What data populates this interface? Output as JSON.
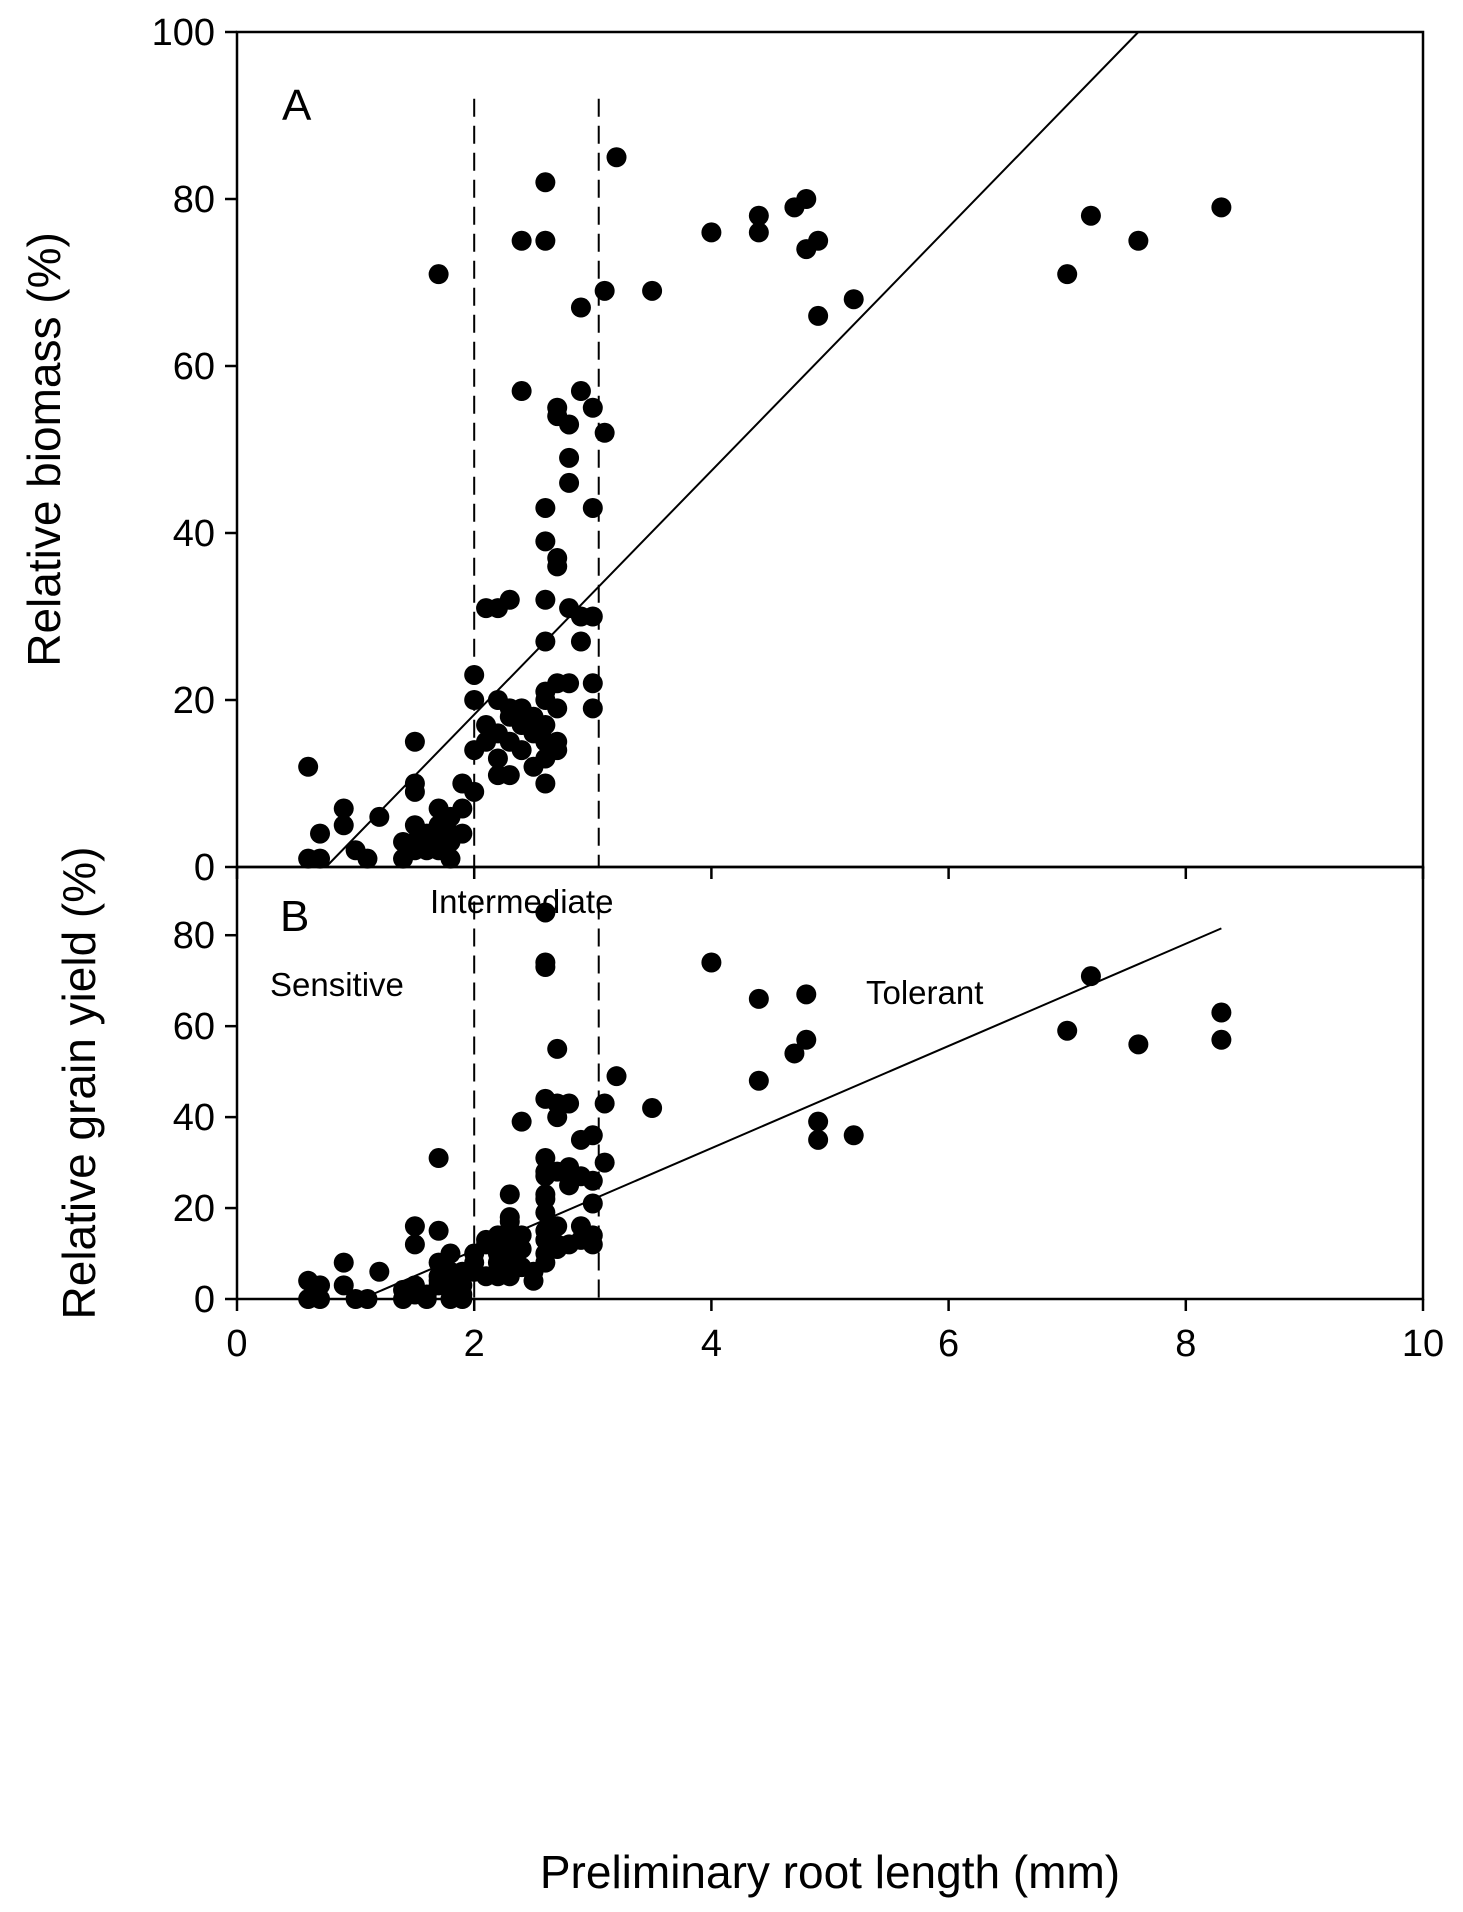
{
  "chart_data": {
    "type": "scatter",
    "xlabel": "Preliminary root length (mm)",
    "xlim": [
      0,
      10
    ],
    "xticks": [
      0,
      2,
      4,
      6,
      8,
      10
    ],
    "colors": {
      "points": "#000000",
      "lines": "#000000",
      "background": "#ffffff"
    },
    "thresholds": [
      2.0,
      3.05
    ],
    "region_labels": {
      "sensitive": "Sensitive",
      "intermediate": "Intermediate",
      "tolerant": "Tolerant"
    },
    "panels": [
      {
        "id": "A",
        "letter": "A",
        "ylabel": "Relative biomass (%)",
        "ylim": [
          0,
          100
        ],
        "yticks": [
          0,
          20,
          40,
          60,
          80,
          100
        ],
        "regression": {
          "x": [
            0.75,
            7.6
          ],
          "y": [
            0,
            100
          ]
        },
        "points": [
          [
            0.6,
            12
          ],
          [
            0.6,
            1
          ],
          [
            0.7,
            1
          ],
          [
            0.7,
            4
          ],
          [
            0.9,
            7
          ],
          [
            0.9,
            5
          ],
          [
            1.0,
            2
          ],
          [
            1.1,
            1
          ],
          [
            1.2,
            6
          ],
          [
            1.4,
            1
          ],
          [
            1.4,
            3
          ],
          [
            1.5,
            15
          ],
          [
            1.5,
            10
          ],
          [
            1.5,
            9
          ],
          [
            1.5,
            5
          ],
          [
            1.5,
            3
          ],
          [
            1.5,
            2
          ],
          [
            1.6,
            4
          ],
          [
            1.6,
            3
          ],
          [
            1.6,
            2
          ],
          [
            1.7,
            71
          ],
          [
            1.7,
            7
          ],
          [
            1.7,
            5
          ],
          [
            1.7,
            3
          ],
          [
            1.7,
            2
          ],
          [
            1.8,
            6
          ],
          [
            1.8,
            4
          ],
          [
            1.8,
            3
          ],
          [
            1.8,
            1
          ],
          [
            1.9,
            10
          ],
          [
            1.9,
            7
          ],
          [
            1.9,
            4
          ],
          [
            2.0,
            9
          ],
          [
            2.0,
            23
          ],
          [
            2.0,
            20
          ],
          [
            2.0,
            14
          ],
          [
            2.1,
            31
          ],
          [
            2.1,
            17
          ],
          [
            2.1,
            15
          ],
          [
            2.2,
            31
          ],
          [
            2.2,
            20
          ],
          [
            2.2,
            16
          ],
          [
            2.2,
            13
          ],
          [
            2.2,
            11
          ],
          [
            2.3,
            32
          ],
          [
            2.3,
            19
          ],
          [
            2.3,
            18
          ],
          [
            2.3,
            15
          ],
          [
            2.3,
            11
          ],
          [
            2.4,
            75
          ],
          [
            2.4,
            57
          ],
          [
            2.4,
            19
          ],
          [
            2.4,
            17
          ],
          [
            2.4,
            14
          ],
          [
            2.5,
            18
          ],
          [
            2.5,
            16
          ],
          [
            2.5,
            12
          ],
          [
            2.6,
            82
          ],
          [
            2.6,
            75
          ],
          [
            2.6,
            43
          ],
          [
            2.6,
            39
          ],
          [
            2.6,
            32
          ],
          [
            2.6,
            27
          ],
          [
            2.6,
            21
          ],
          [
            2.6,
            20
          ],
          [
            2.6,
            17
          ],
          [
            2.6,
            15
          ],
          [
            2.6,
            13
          ],
          [
            2.6,
            10
          ],
          [
            2.7,
            55
          ],
          [
            2.7,
            54
          ],
          [
            2.7,
            37
          ],
          [
            2.7,
            36
          ],
          [
            2.7,
            22
          ],
          [
            2.7,
            19
          ],
          [
            2.7,
            15
          ],
          [
            2.7,
            14
          ],
          [
            2.8,
            53
          ],
          [
            2.8,
            49
          ],
          [
            2.8,
            46
          ],
          [
            2.8,
            31
          ],
          [
            2.8,
            22
          ],
          [
            2.9,
            67
          ],
          [
            2.9,
            57
          ],
          [
            2.9,
            30
          ],
          [
            2.9,
            27
          ],
          [
            3.0,
            55
          ],
          [
            3.0,
            43
          ],
          [
            3.0,
            30
          ],
          [
            3.0,
            22
          ],
          [
            3.0,
            19
          ],
          [
            3.1,
            69
          ],
          [
            3.1,
            52
          ],
          [
            3.2,
            85
          ],
          [
            3.5,
            69
          ],
          [
            4.0,
            76
          ],
          [
            4.4,
            78
          ],
          [
            4.4,
            76
          ],
          [
            4.7,
            79
          ],
          [
            4.8,
            80
          ],
          [
            4.8,
            74
          ],
          [
            4.9,
            75
          ],
          [
            4.9,
            66
          ],
          [
            5.2,
            68
          ],
          [
            7.0,
            71
          ],
          [
            7.2,
            78
          ],
          [
            7.6,
            75
          ],
          [
            8.3,
            79
          ]
        ]
      },
      {
        "id": "B",
        "letter": "B",
        "ylabel": "Relative grain yield (%)",
        "ylim": [
          0,
          95
        ],
        "yticks": [
          0,
          20,
          40,
          60,
          80
        ],
        "regression": {
          "x": [
            1.05,
            8.3
          ],
          "y": [
            0,
            81.5
          ]
        },
        "points": [
          [
            0.6,
            4
          ],
          [
            0.6,
            0
          ],
          [
            0.7,
            0
          ],
          [
            0.7,
            3
          ],
          [
            0.9,
            8
          ],
          [
            0.9,
            3
          ],
          [
            1.0,
            0
          ],
          [
            1.1,
            0
          ],
          [
            1.2,
            6
          ],
          [
            1.4,
            0
          ],
          [
            1.4,
            2
          ],
          [
            1.5,
            16
          ],
          [
            1.5,
            12
          ],
          [
            1.5,
            3
          ],
          [
            1.5,
            1
          ],
          [
            1.6,
            1
          ],
          [
            1.6,
            0
          ],
          [
            1.7,
            31
          ],
          [
            1.7,
            15
          ],
          [
            1.7,
            8
          ],
          [
            1.7,
            5
          ],
          [
            1.7,
            4
          ],
          [
            1.7,
            3
          ],
          [
            1.8,
            10
          ],
          [
            1.8,
            6
          ],
          [
            1.8,
            3
          ],
          [
            1.8,
            0
          ],
          [
            1.9,
            6
          ],
          [
            1.9,
            3
          ],
          [
            1.9,
            1
          ],
          [
            1.9,
            0
          ],
          [
            2.0,
            10
          ],
          [
            2.0,
            8
          ],
          [
            2.0,
            6
          ],
          [
            2.1,
            13
          ],
          [
            2.1,
            12
          ],
          [
            2.1,
            5
          ],
          [
            2.2,
            14
          ],
          [
            2.2,
            12
          ],
          [
            2.2,
            10
          ],
          [
            2.2,
            8
          ],
          [
            2.2,
            6
          ],
          [
            2.2,
            5
          ],
          [
            2.3,
            23
          ],
          [
            2.3,
            18
          ],
          [
            2.3,
            17
          ],
          [
            2.3,
            13
          ],
          [
            2.3,
            10
          ],
          [
            2.3,
            7
          ],
          [
            2.3,
            5
          ],
          [
            2.4,
            39
          ],
          [
            2.4,
            14
          ],
          [
            2.4,
            11
          ],
          [
            2.4,
            7
          ],
          [
            2.5,
            6
          ],
          [
            2.5,
            4
          ],
          [
            2.6,
            85
          ],
          [
            2.6,
            74
          ],
          [
            2.6,
            73
          ],
          [
            2.6,
            44
          ],
          [
            2.6,
            31
          ],
          [
            2.6,
            28
          ],
          [
            2.6,
            27
          ],
          [
            2.6,
            23
          ],
          [
            2.6,
            22
          ],
          [
            2.6,
            19
          ],
          [
            2.6,
            15
          ],
          [
            2.6,
            13
          ],
          [
            2.6,
            10
          ],
          [
            2.6,
            8
          ],
          [
            2.7,
            55
          ],
          [
            2.7,
            43
          ],
          [
            2.7,
            40
          ],
          [
            2.7,
            28
          ],
          [
            2.7,
            16
          ],
          [
            2.7,
            12
          ],
          [
            2.7,
            11
          ],
          [
            2.8,
            43
          ],
          [
            2.8,
            29
          ],
          [
            2.8,
            27
          ],
          [
            2.8,
            25
          ],
          [
            2.8,
            12
          ],
          [
            2.9,
            35
          ],
          [
            2.9,
            27
          ],
          [
            2.9,
            16
          ],
          [
            2.9,
            13
          ],
          [
            3.0,
            36
          ],
          [
            3.0,
            26
          ],
          [
            3.0,
            21
          ],
          [
            3.0,
            14
          ],
          [
            3.0,
            12
          ],
          [
            3.1,
            43
          ],
          [
            3.1,
            30
          ],
          [
            3.2,
            49
          ],
          [
            3.5,
            42
          ],
          [
            4.0,
            74
          ],
          [
            4.4,
            66
          ],
          [
            4.4,
            48
          ],
          [
            4.7,
            54
          ],
          [
            4.8,
            67
          ],
          [
            4.8,
            57
          ],
          [
            4.9,
            39
          ],
          [
            4.9,
            35
          ],
          [
            5.2,
            36
          ],
          [
            7.0,
            59
          ],
          [
            7.2,
            71
          ],
          [
            7.6,
            56
          ],
          [
            8.3,
            63
          ],
          [
            8.3,
            57
          ]
        ]
      }
    ]
  }
}
